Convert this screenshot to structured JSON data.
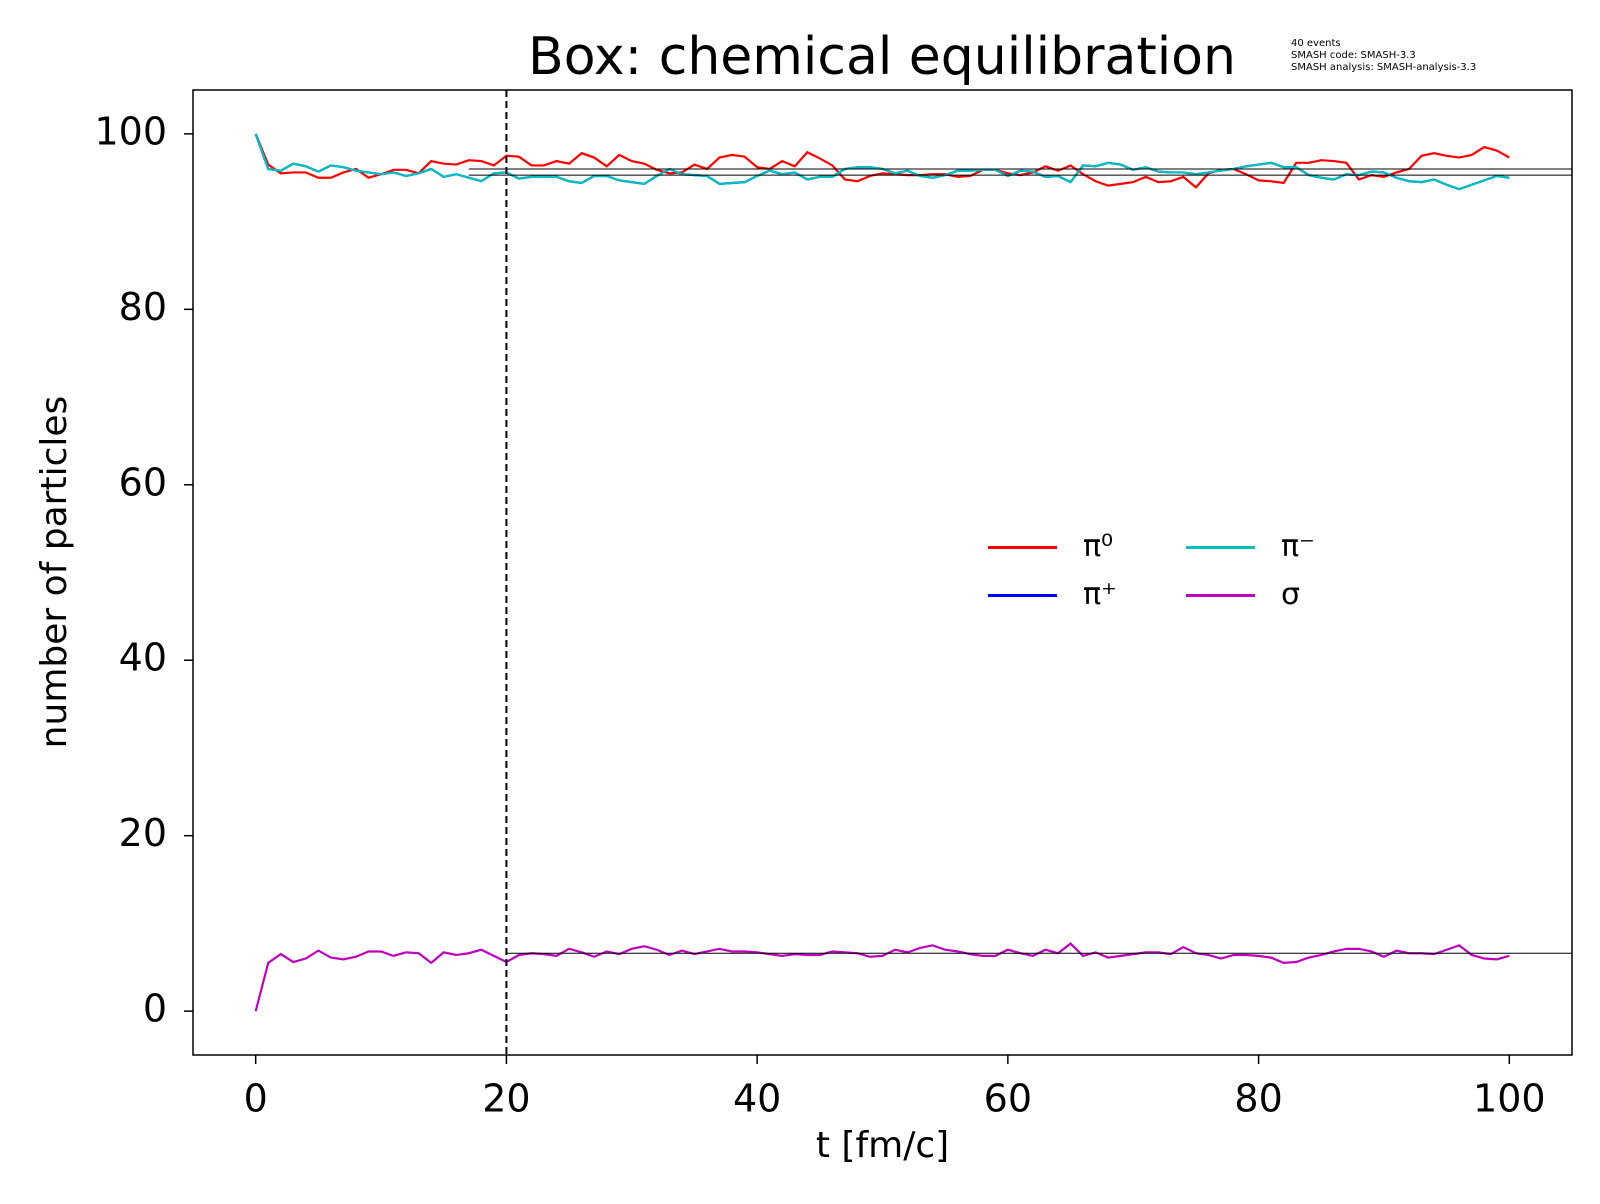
{
  "chart_data": {
    "type": "line",
    "title": "Box: chemical equilibration",
    "annotation": [
      "40 events",
      "SMASH code:      SMASH-3.3",
      "SMASH analysis: SMASH-analysis-3.3"
    ],
    "xlabel": "t [fm/c]",
    "ylabel": "number of particles",
    "xlim": [
      -5,
      105
    ],
    "ylim": [
      -5,
      105
    ],
    "xticks": [
      0,
      20,
      40,
      60,
      80,
      100
    ],
    "yticks": [
      0,
      20,
      40,
      60,
      80,
      100
    ],
    "grid": false,
    "legend": "center right",
    "legend_columns": 3,
    "vline": {
      "x": 20,
      "style": "dashed",
      "color": "#000000"
    },
    "hlines": [
      {
        "y": 96.0,
        "xmin": 17,
        "color": "#000000"
      },
      {
        "y": 95.3,
        "xmin": 17,
        "color": "#000000"
      },
      {
        "y": 6.6,
        "xmin": 20,
        "color": "#000000"
      }
    ],
    "x": [
      0,
      1,
      2,
      3,
      4,
      5,
      6,
      7,
      8,
      9,
      10,
      11,
      12,
      13,
      14,
      15,
      16,
      17,
      18,
      19,
      20,
      21,
      22,
      23,
      24,
      25,
      26,
      27,
      28,
      29,
      30,
      31,
      32,
      33,
      34,
      35,
      36,
      37,
      38,
      39,
      40,
      41,
      42,
      43,
      44,
      45,
      46,
      47,
      48,
      49,
      50,
      51,
      52,
      53,
      54,
      55,
      56,
      57,
      58,
      59,
      60,
      61,
      62,
      63,
      64,
      65,
      66,
      67,
      68,
      69,
      70,
      71,
      72,
      73,
      74,
      75,
      76,
      77,
      78,
      79,
      80,
      81,
      82,
      83,
      84,
      85,
      86,
      87,
      88,
      89,
      90,
      91,
      92,
      93,
      94,
      95,
      96,
      97,
      98,
      99,
      100
    ],
    "series": [
      {
        "name": "π⁰",
        "color": "#ff0000",
        "values": [
          100,
          96.5,
          95.5,
          95.6,
          95.6,
          95.0,
          95.0,
          95.6,
          96.0,
          95.0,
          95.4,
          95.9,
          95.9,
          95.5,
          96.9,
          96.6,
          96.5,
          97.0,
          96.9,
          96.4,
          97.5,
          97.4,
          96.4,
          96.4,
          96.9,
          96.6,
          97.8,
          97.3,
          96.3,
          97.6,
          96.9,
          96.6,
          95.9,
          95.5,
          95.6,
          96.5,
          96.0,
          97.3,
          97.6,
          97.4,
          96.2,
          96.0,
          96.9,
          96.3,
          97.9,
          97.2,
          96.4,
          94.8,
          94.6,
          95.2,
          95.5,
          95.4,
          95.3,
          95.3,
          95.4,
          95.4,
          95.1,
          95.2,
          95.9,
          95.9,
          95.5,
          95.3,
          95.6,
          96.3,
          95.8,
          96.4,
          95.4,
          94.6,
          94.1,
          94.3,
          94.5,
          95.1,
          94.5,
          94.6,
          95.1,
          93.9,
          95.5,
          95.9,
          96.0,
          95.4,
          94.7,
          94.6,
          94.4,
          96.7,
          96.7,
          97.0,
          96.9,
          96.7,
          94.8,
          95.3,
          95.1,
          95.6,
          96.0,
          97.5,
          97.8,
          97.5,
          97.3,
          97.6,
          98.5,
          98.1,
          97.3
        ]
      },
      {
        "name": "π⁺",
        "color": "#0000ff",
        "values": [
          100,
          96.0,
          95.8,
          96.6,
          96.3,
          95.7,
          96.4,
          96.2,
          95.8,
          95.6,
          95.4,
          95.6,
          95.2,
          95.5,
          96.0,
          95.1,
          95.4,
          95.0,
          94.6,
          95.5,
          95.6,
          94.9,
          95.1,
          95.1,
          95.1,
          94.6,
          94.4,
          95.2,
          95.2,
          94.7,
          94.5,
          94.3,
          95.2,
          96.0,
          95.4,
          95.3,
          95.2,
          94.3,
          94.4,
          94.5,
          95.2,
          95.8,
          95.4,
          95.6,
          94.8,
          95.1,
          95.1,
          96.0,
          96.2,
          96.2,
          96.0,
          95.5,
          95.8,
          95.2,
          95.0,
          95.3,
          95.8,
          95.8,
          95.9,
          95.9,
          95.2,
          95.8,
          95.7,
          95.1,
          95.2,
          94.5,
          96.4,
          96.3,
          96.7,
          96.5,
          95.9,
          96.2,
          95.7,
          95.6,
          95.6,
          95.4,
          95.6,
          95.8,
          96.0,
          96.3,
          96.5,
          96.7,
          96.2,
          96.2,
          95.3,
          95.0,
          94.8,
          95.4,
          95.3,
          95.7,
          95.6,
          95.0,
          94.6,
          94.5,
          94.8,
          94.2,
          93.7,
          94.2,
          94.7,
          95.2,
          95.0
        ]
      },
      {
        "name": "π⁻",
        "color": "#00bfbf",
        "values": [
          100,
          96.0,
          95.8,
          96.6,
          96.3,
          95.7,
          96.4,
          96.2,
          95.8,
          95.6,
          95.4,
          95.6,
          95.2,
          95.5,
          96.0,
          95.1,
          95.4,
          95.0,
          94.6,
          95.5,
          95.6,
          94.9,
          95.1,
          95.1,
          95.1,
          94.6,
          94.4,
          95.2,
          95.2,
          94.7,
          94.5,
          94.3,
          95.2,
          96.0,
          95.4,
          95.3,
          95.2,
          94.3,
          94.4,
          94.5,
          95.2,
          95.8,
          95.4,
          95.6,
          94.8,
          95.1,
          95.1,
          96.0,
          96.2,
          96.2,
          96.0,
          95.5,
          95.8,
          95.2,
          95.0,
          95.3,
          95.8,
          95.8,
          95.9,
          95.9,
          95.2,
          95.8,
          95.7,
          95.1,
          95.2,
          94.5,
          96.4,
          96.3,
          96.7,
          96.5,
          95.9,
          96.2,
          95.7,
          95.6,
          95.6,
          95.4,
          95.6,
          95.8,
          96.0,
          96.3,
          96.5,
          96.7,
          96.2,
          96.2,
          95.3,
          95.0,
          94.8,
          95.4,
          95.3,
          95.7,
          95.6,
          95.0,
          94.6,
          94.5,
          94.8,
          94.2,
          93.7,
          94.2,
          94.7,
          95.2,
          95.0
        ]
      },
      {
        "name": "σ",
        "color": "#bf00bf",
        "values": [
          0,
          5.5,
          6.5,
          5.6,
          6.0,
          6.9,
          6.1,
          5.9,
          6.2,
          6.8,
          6.8,
          6.3,
          6.7,
          6.6,
          5.5,
          6.7,
          6.4,
          6.6,
          7.0,
          6.3,
          5.6,
          6.4,
          6.6,
          6.5,
          6.3,
          7.1,
          6.7,
          6.2,
          6.8,
          6.5,
          7.1,
          7.4,
          7.0,
          6.4,
          6.9,
          6.5,
          6.8,
          7.1,
          6.8,
          6.8,
          6.7,
          6.5,
          6.3,
          6.5,
          6.4,
          6.4,
          6.8,
          6.7,
          6.6,
          6.2,
          6.3,
          7.0,
          6.7,
          7.2,
          7.5,
          7.0,
          6.8,
          6.5,
          6.3,
          6.3,
          7.0,
          6.6,
          6.3,
          7.0,
          6.6,
          7.7,
          6.3,
          6.7,
          6.1,
          6.3,
          6.5,
          6.7,
          6.7,
          6.5,
          7.3,
          6.6,
          6.4,
          6.0,
          6.4,
          6.4,
          6.3,
          6.1,
          5.5,
          5.6,
          6.1,
          6.4,
          6.8,
          7.1,
          7.1,
          6.8,
          6.2,
          6.9,
          6.6,
          6.6,
          6.5,
          7.0,
          7.5,
          6.4,
          6.0,
          5.9,
          6.3
        ]
      }
    ]
  }
}
